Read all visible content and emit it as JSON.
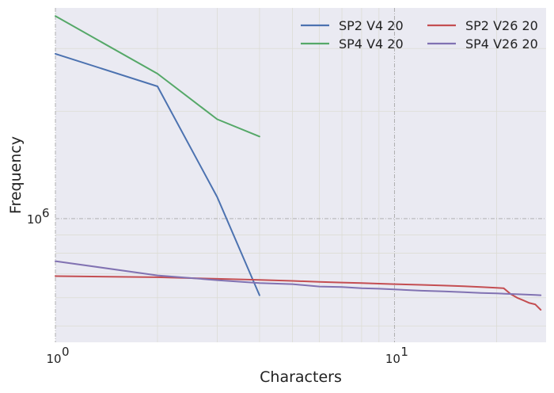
{
  "chart_data": {
    "type": "line",
    "xlabel": "Characters",
    "ylabel": "Frequency",
    "xscale": "log",
    "yscale": "log",
    "xlim": [
      1,
      28
    ],
    "ylim": [
      450000,
      3900000
    ],
    "grid": true,
    "legend_position": "top-right",
    "legend_columns": 2,
    "x_ticks": [
      {
        "value": 1,
        "base": "10",
        "exp": "0"
      },
      {
        "value": 10,
        "base": "10",
        "exp": "1"
      }
    ],
    "y_ticks": [
      {
        "value": 1000000,
        "base": "10",
        "exp": "6"
      }
    ],
    "series": [
      {
        "name": "SP2 V4 20",
        "color": "#4c72b0",
        "x": [
          1,
          2,
          3,
          4
        ],
        "y": [
          2900000,
          2350000,
          1150000,
          610000
        ]
      },
      {
        "name": "SP4 V4 20",
        "color": "#55a868",
        "x": [
          1,
          2,
          3,
          4
        ],
        "y": [
          3700000,
          2550000,
          1900000,
          1700000
        ]
      },
      {
        "name": "SP2 V26 20",
        "color": "#c44e52",
        "x": [
          1,
          2,
          3,
          4,
          5,
          6,
          7,
          8,
          9,
          10,
          12,
          14,
          16,
          18,
          20,
          21,
          22,
          23,
          24,
          25,
          26,
          27
        ],
        "y": [
          690000,
          685000,
          678000,
          673000,
          669000,
          665000,
          662000,
          660000,
          657000,
          655000,
          652000,
          649000,
          646000,
          643000,
          640000,
          638000,
          615000,
          600000,
          590000,
          580000,
          575000,
          555000
        ]
      },
      {
        "name": "SP4 V26 20",
        "color": "#8172b2",
        "x": [
          1,
          2,
          3,
          4,
          5,
          6,
          7,
          8,
          9,
          10,
          12,
          14,
          16,
          18,
          20,
          22,
          24,
          26,
          27
        ],
        "y": [
          760000,
          693000,
          672000,
          660000,
          655000,
          645000,
          643000,
          638000,
          636000,
          633000,
          628000,
          625000,
          622000,
          619000,
          617000,
          615000,
          613000,
          611000,
          610000
        ]
      }
    ]
  }
}
